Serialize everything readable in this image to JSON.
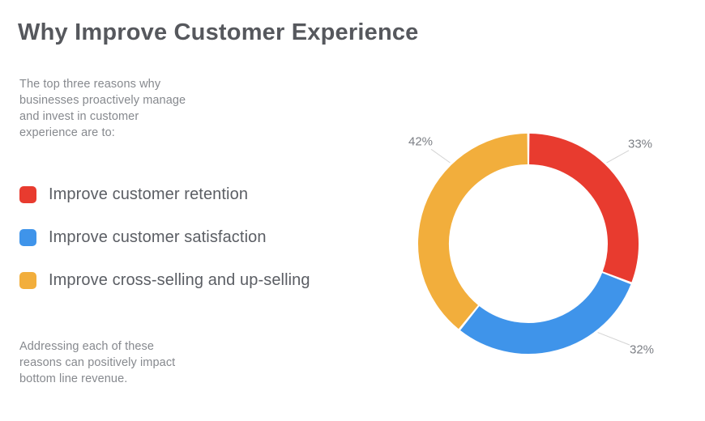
{
  "header": {
    "title": "Why Improve Customer Experience"
  },
  "intro": {
    "text": "The top three reasons why\nbusinesses proactively manage\nand invest in customer\nexperience are to:"
  },
  "footer": {
    "text": "Addressing each of these\nreasons can positively impact\nbottom line revenue."
  },
  "colors": {
    "red": "#E83B2F",
    "blue": "#3F94EA",
    "orange": "#F2AE3C",
    "title_text": "#56585D",
    "body_text": "#86898E",
    "legend_text": "#5B5E64",
    "pct_label_text": "#7C7F85",
    "leader_line": "#D4D4D4",
    "background": "#FFFFFF"
  },
  "chart_data": {
    "type": "pie",
    "subtype": "donut",
    "title": "",
    "slices": [
      {
        "label": "Improve customer retention",
        "value": 33,
        "data_label": "33%",
        "color": "#E83B2F"
      },
      {
        "label": "Improve customer satisfaction",
        "value": 32,
        "data_label": "32%",
        "color": "#3F94EA"
      },
      {
        "label": "Improve cross-selling and up-selling",
        "value": 42,
        "data_label": "42%",
        "color": "#F2AE3C"
      }
    ],
    "start_angle_deg": 0,
    "direction": "clockwise",
    "inner_radius_ratio": 0.72,
    "legend_position": "left",
    "data_labels_outside": true
  }
}
